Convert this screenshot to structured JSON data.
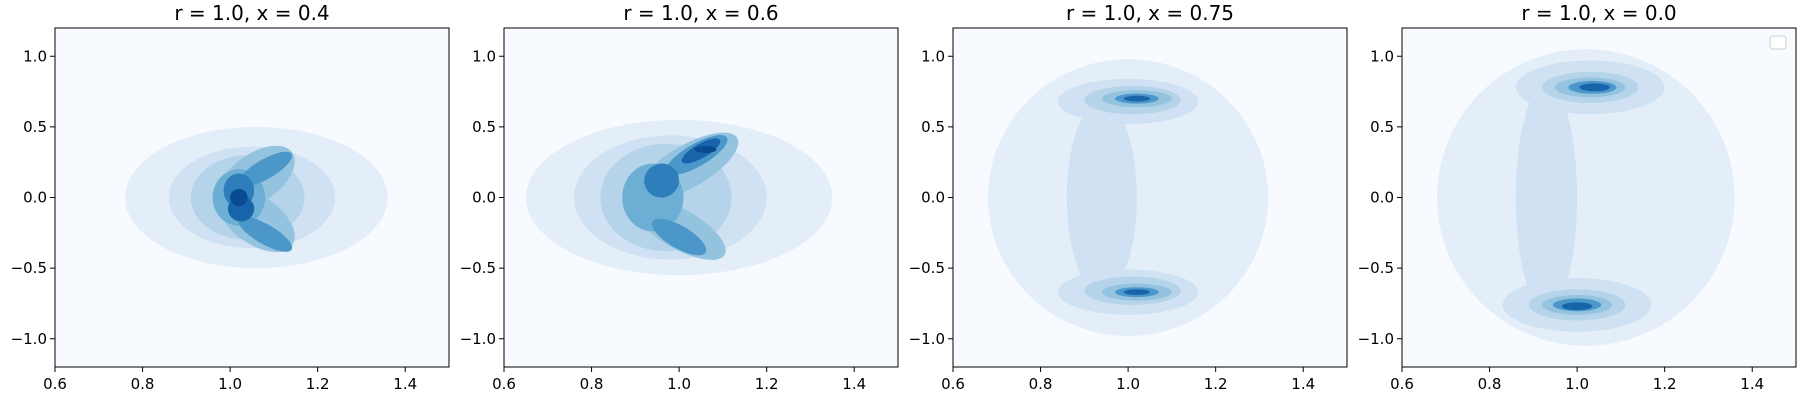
{
  "chart_data": [
    {
      "type": "contour",
      "title": "r = 1.0, x = 0.4",
      "xlim": [
        0.6,
        1.5
      ],
      "ylim": [
        -1.2,
        1.2
      ],
      "xticks": [
        0.6,
        0.8,
        1.0,
        1.2,
        1.4
      ],
      "yticks": [
        -1.0,
        -0.5,
        0.0,
        0.5,
        1.0
      ],
      "colormap": "Blues",
      "legend": false,
      "density_peaks": [
        {
          "x": 1.02,
          "y": 0.0,
          "level": "max"
        },
        {
          "x": 1.08,
          "y": 0.2,
          "level": "high"
        },
        {
          "x": 1.08,
          "y": -0.27,
          "level": "high"
        }
      ]
    },
    {
      "type": "contour",
      "title": "r = 1.0, x = 0.6",
      "xlim": [
        0.6,
        1.5
      ],
      "ylim": [
        -1.2,
        1.2
      ],
      "xticks": [
        0.6,
        0.8,
        1.0,
        1.2,
        1.4
      ],
      "yticks": [
        -1.0,
        -0.5,
        0.0,
        0.5,
        1.0
      ],
      "colormap": "Blues",
      "legend": false,
      "density_peaks": [
        {
          "x": 1.05,
          "y": 0.33,
          "level": "max"
        },
        {
          "x": 0.95,
          "y": 0.1,
          "level": "high"
        },
        {
          "x": 1.0,
          "y": -0.28,
          "level": "high"
        }
      ]
    },
    {
      "type": "contour",
      "title": "r = 1.0, x = 0.75",
      "xlim": [
        0.6,
        1.5
      ],
      "ylim": [
        -1.2,
        1.2
      ],
      "xticks": [
        0.6,
        0.8,
        1.0,
        1.2,
        1.4
      ],
      "yticks": [
        -1.0,
        -0.5,
        0.0,
        0.5,
        1.0
      ],
      "colormap": "Blues",
      "legend": false,
      "density_peaks": [
        {
          "x": 1.02,
          "y": 0.7,
          "level": "max"
        },
        {
          "x": 1.02,
          "y": -0.67,
          "level": "max"
        }
      ]
    },
    {
      "type": "contour",
      "title": "r = 1.0, x = 0.0",
      "xlim": [
        0.6,
        1.5
      ],
      "ylim": [
        -1.2,
        1.2
      ],
      "xticks": [
        0.6,
        0.8,
        1.0,
        1.2,
        1.4
      ],
      "yticks": [
        -1.0,
        -0.5,
        0.0,
        0.5,
        1.0
      ],
      "colormap": "Blues",
      "legend": true,
      "legend_position": "top-right",
      "density_peaks": [
        {
          "x": 1.03,
          "y": 0.78,
          "level": "max"
        },
        {
          "x": 1.0,
          "y": -0.76,
          "level": "max"
        }
      ]
    }
  ],
  "colors": {
    "levels": [
      "#f7fbff",
      "#e3eef9",
      "#cfe1f2",
      "#b5d4e9",
      "#93c3df",
      "#6daed5",
      "#4b97c9",
      "#2f7ebc",
      "#1864aa",
      "#0a4a90"
    ]
  }
}
